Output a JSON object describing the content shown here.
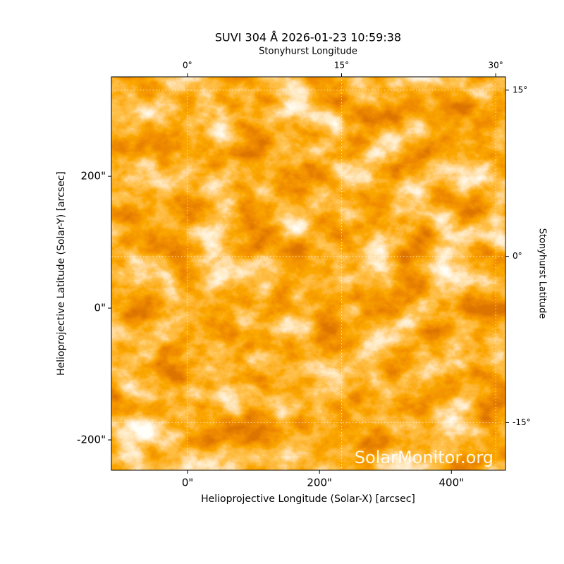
{
  "chart_data": {
    "type": "image",
    "title": "SUVI 304 Å 2026-01-23 10:59:38",
    "xlabel": "Helioprojective Longitude (Solar-X) [arcsec]",
    "ylabel": "Helioprojective Latitude (Solar-Y) [arcsec]",
    "x2label": "Stonyhurst Longitude",
    "y2label": "Stonyhurst Latitude",
    "xlim": [
      -115.5,
      482
    ],
    "ylim": [
      -246,
      351
    ],
    "xticks": [
      {
        "value": 0,
        "label": "0\""
      },
      {
        "value": 200,
        "label": "200\""
      },
      {
        "value": 400,
        "label": "400\""
      }
    ],
    "yticks": [
      {
        "value": -200,
        "label": "-200\""
      },
      {
        "value": 0,
        "label": "0\""
      },
      {
        "value": 200,
        "label": "200\""
      }
    ],
    "x2lim": [
      -7.4,
      30.95
    ],
    "y2lim": [
      -19.3,
      16.2
    ],
    "x2ticks": [
      {
        "value": 0,
        "label": "0°"
      },
      {
        "value": 15,
        "label": "15°"
      },
      {
        "value": 30,
        "label": "30°"
      }
    ],
    "y2ticks": [
      {
        "value": -15,
        "label": "-15°"
      },
      {
        "value": 0,
        "label": "0°"
      },
      {
        "value": 15,
        "label": "15°"
      }
    ],
    "grid": true,
    "watermark": "SolarMonitor.org"
  }
}
